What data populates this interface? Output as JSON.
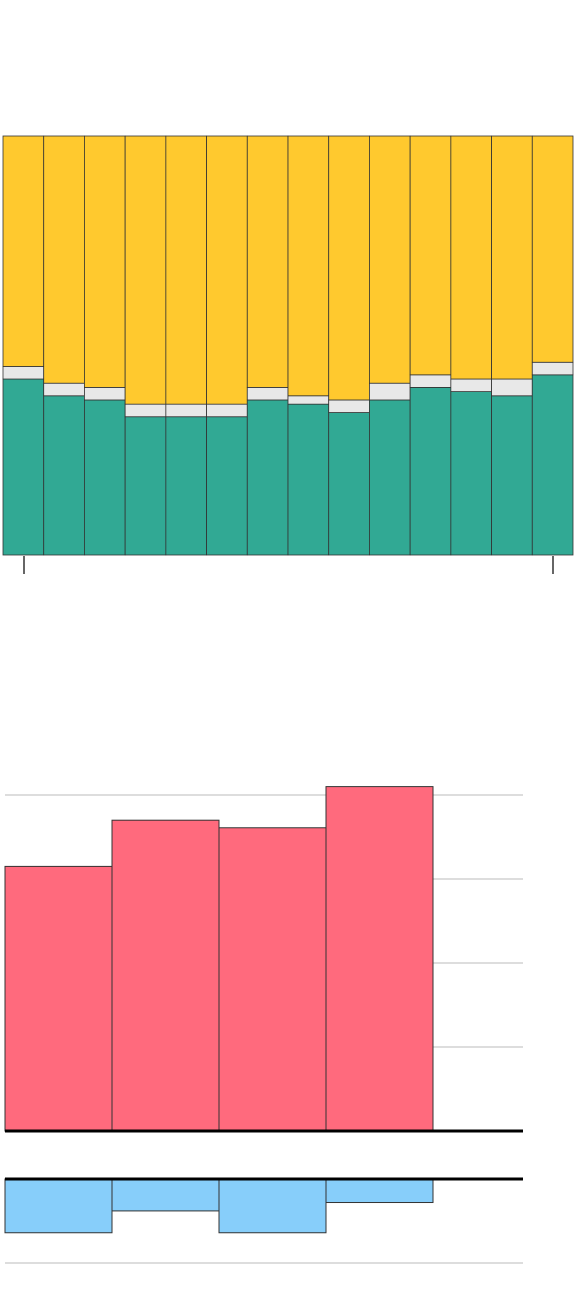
{
  "chart_data": [
    {
      "type": "bar",
      "stacking": "percent",
      "grid": false,
      "series": [
        {
          "color": "#31A994",
          "values": [
            42,
            38,
            37,
            33,
            33,
            33,
            37,
            36,
            34,
            37,
            40,
            39,
            38,
            43
          ]
        },
        {
          "color": "#E8E8E8",
          "values": [
            3,
            3,
            3,
            3,
            3,
            3,
            3,
            2,
            3,
            4,
            3,
            3,
            4,
            3
          ]
        },
        {
          "color": "#FFC92E",
          "values": [
            55,
            59,
            60,
            64,
            64,
            64,
            60,
            62,
            63,
            59,
            57,
            58,
            58,
            54
          ]
        }
      ],
      "ylim": [
        0,
        100
      ]
    },
    {
      "type": "bar",
      "grid": true,
      "series": [
        {
          "color": "#FF6A7D",
          "values": [
            315,
            370,
            361,
            410
          ]
        },
        {
          "color": "#87CEFA",
          "values": [
            -64,
            -38,
            -64,
            -28
          ]
        }
      ],
      "ylim": [
        -100,
        410
      ]
    }
  ]
}
